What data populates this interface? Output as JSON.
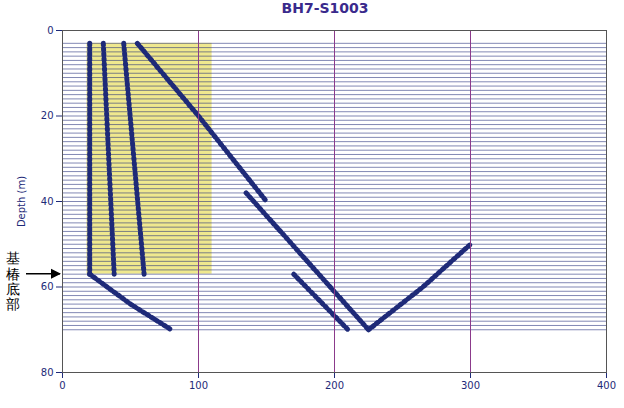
{
  "chart_data": {
    "type": "wiggle",
    "title": "BH7-S1003",
    "y_label": "Depth (m)",
    "xlim": [
      0,
      400
    ],
    "xticks": [
      0,
      100,
      200,
      300,
      400
    ],
    "ylim": [
      0,
      80
    ],
    "yticks": [
      0,
      20,
      40,
      60,
      80
    ],
    "grid": "x",
    "traces": {
      "color": "#1e2a78",
      "depths": [
        3,
        4,
        5,
        6,
        7,
        8,
        9,
        10,
        11,
        12,
        13,
        14,
        15,
        16,
        17,
        18,
        19,
        20,
        21,
        22,
        23,
        24,
        25,
        26,
        27,
        28,
        29,
        30,
        31,
        32,
        33,
        34,
        35,
        36,
        37,
        38,
        39,
        40,
        41,
        42,
        43,
        44,
        45,
        46,
        47,
        48,
        49,
        50,
        51,
        52,
        53,
        54,
        55,
        56,
        57,
        58,
        59,
        60,
        61,
        62,
        63,
        64,
        65,
        66,
        67,
        68,
        69,
        70
      ]
    },
    "highlight": {
      "x": [
        18,
        110
      ],
      "depth": [
        3,
        57
      ],
      "color": "#ece47a"
    },
    "events": [
      {
        "color": "#1e2a78",
        "x": [
          20,
          20
        ],
        "depth": [
          3,
          57
        ]
      },
      {
        "color": "#1e2a78",
        "x": [
          30,
          38
        ],
        "depth": [
          3,
          57
        ]
      },
      {
        "color": "#1e2a78",
        "x": [
          45,
          60
        ],
        "depth": [
          3,
          57
        ]
      },
      {
        "color": "#1e2a78",
        "x": [
          55,
          100,
          150
        ],
        "depth": [
          3,
          20,
          40
        ]
      },
      {
        "color": "#1e2a78",
        "x": [
          135,
          180,
          225
        ],
        "depth": [
          38,
          54,
          70
        ]
      },
      {
        "color": "#1e2a78",
        "x": [
          225,
          265,
          300
        ],
        "depth": [
          70,
          60,
          50
        ]
      },
      {
        "color": "#1e2a78",
        "x": [
          20,
          50,
          80
        ],
        "depth": [
          57,
          64,
          70
        ]
      },
      {
        "color": "#1e2a78",
        "x": [
          170,
          210
        ],
        "depth": [
          57,
          70
        ]
      }
    ],
    "annotations": [
      {
        "text": "基椿底部",
        "depth": 57
      }
    ]
  }
}
